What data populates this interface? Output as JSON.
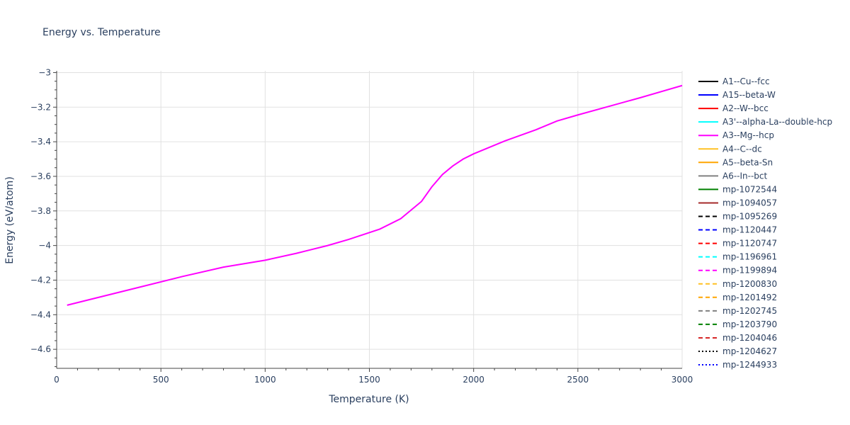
{
  "chart_data": {
    "type": "line",
    "title": "Energy vs. Temperature",
    "xlabel": "Temperature (K)",
    "ylabel": "Energy (eV/atom)",
    "xlim": [
      0,
      3000
    ],
    "ylim": [
      -4.71,
      -2.99
    ],
    "xticks": [
      0,
      500,
      1000,
      1500,
      2000,
      2500,
      3000
    ],
    "xtick_labels": [
      "0",
      "500",
      "1000",
      "1500",
      "2000",
      "2500",
      "3000"
    ],
    "yticks": [
      -3,
      -3.2,
      -3.4,
      -3.6,
      -3.8,
      -4,
      -4.2,
      -4.4,
      -4.6
    ],
    "ytick_labels": [
      "−3",
      "−3.2",
      "−3.4",
      "−3.6",
      "−3.8",
      "−4",
      "−4.2",
      "−4.4",
      "−4.6"
    ],
    "grid": true,
    "legend_position": "right",
    "series": [
      {
        "name": "A1--Cu--fcc",
        "color": "#000000",
        "dash": "solid",
        "x": [],
        "y": []
      },
      {
        "name": "A15--beta-W",
        "color": "#0000ff",
        "dash": "solid",
        "x": [],
        "y": []
      },
      {
        "name": "A2--W--bcc",
        "color": "#ff0000",
        "dash": "solid",
        "x": [],
        "y": []
      },
      {
        "name": "A3'--alpha-La--double-hcp",
        "color": "#00ffff",
        "dash": "solid",
        "x": [],
        "y": []
      },
      {
        "name": "A3--Mg--hcp",
        "color": "#ff00ff",
        "dash": "solid",
        "x": [
          50,
          200,
          400,
          600,
          800,
          1000,
          1150,
          1200,
          1300,
          1400,
          1450,
          1550,
          1650,
          1750,
          1800,
          1850,
          1900,
          1950,
          2000,
          2150,
          2300,
          2350,
          2400,
          2500,
          2650,
          2800,
          3000
        ],
        "y": [
          -4.345,
          -4.3,
          -4.24,
          -4.18,
          -4.125,
          -4.085,
          -4.045,
          -4.03,
          -4.0,
          -3.965,
          -3.945,
          -3.905,
          -3.845,
          -3.745,
          -3.66,
          -3.59,
          -3.54,
          -3.5,
          -3.47,
          -3.395,
          -3.33,
          -3.305,
          -3.28,
          -3.245,
          -3.195,
          -3.145,
          -3.075
        ]
      },
      {
        "name": "A4--C--dc",
        "color": "#ffc125",
        "dash": "solid",
        "x": [],
        "y": []
      },
      {
        "name": "A5--beta-Sn",
        "color": "#ffa500",
        "dash": "solid",
        "x": [],
        "y": []
      },
      {
        "name": "A6--In--bct",
        "color": "#808080",
        "dash": "solid",
        "x": [],
        "y": []
      },
      {
        "name": "mp-1072544",
        "color": "#008000",
        "dash": "solid",
        "x": [],
        "y": []
      },
      {
        "name": "mp-1094057",
        "color": "#a52a2a",
        "dash": "solid",
        "x": [],
        "y": []
      },
      {
        "name": "mp-1095269",
        "color": "#000000",
        "dash": "dash",
        "x": [],
        "y": []
      },
      {
        "name": "mp-1120447",
        "color": "#0000ff",
        "dash": "dash",
        "x": [],
        "y": []
      },
      {
        "name": "mp-1120747",
        "color": "#ff0000",
        "dash": "dash",
        "x": [],
        "y": []
      },
      {
        "name": "mp-1196961",
        "color": "#00ffff",
        "dash": "dash",
        "x": [],
        "y": []
      },
      {
        "name": "mp-1199894",
        "color": "#ff00ff",
        "dash": "dash",
        "x": [],
        "y": []
      },
      {
        "name": "mp-1200830",
        "color": "#ffc125",
        "dash": "dash",
        "x": [],
        "y": []
      },
      {
        "name": "mp-1201492",
        "color": "#ffa500",
        "dash": "dash",
        "x": [],
        "y": []
      },
      {
        "name": "mp-1202745",
        "color": "#808080",
        "dash": "dash",
        "x": [],
        "y": []
      },
      {
        "name": "mp-1203790",
        "color": "#008000",
        "dash": "dash",
        "x": [],
        "y": []
      },
      {
        "name": "mp-1204046",
        "color": "#d62728",
        "dash": "dash",
        "x": [],
        "y": []
      },
      {
        "name": "mp-1204627",
        "color": "#000000",
        "dash": "dot",
        "x": [],
        "y": []
      },
      {
        "name": "mp-1244933",
        "color": "#0000ff",
        "dash": "dot",
        "x": [],
        "y": []
      }
    ]
  }
}
